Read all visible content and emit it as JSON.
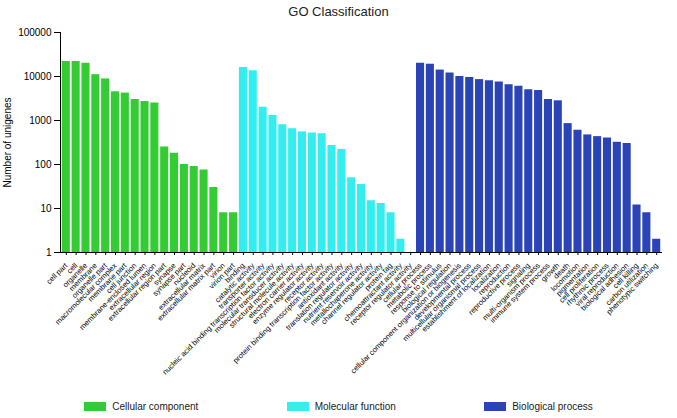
{
  "chart_data": {
    "type": "bar",
    "title": "GO Classification",
    "y_label": "Number of unigenes",
    "log": "y",
    "grid": false,
    "legend": "bottom",
    "ylim": [
      1,
      100000
    ],
    "yticks": [
      1,
      10,
      100,
      1000,
      10000,
      100000
    ],
    "categories": [
      "cell part",
      "cell",
      "organelle",
      "membrane",
      "organelle part",
      "macromolecular complex",
      "membrane part",
      "cell junction",
      "membrane-enclosed lumen",
      "extracellular region",
      "extracellular region part",
      "synapse",
      "synapse part",
      "nucleoid",
      "extracellular matrix",
      "extracellular matrix part",
      "virion",
      "virion part",
      "binding",
      "catalytic activity",
      "transporter activity",
      "nucleic acid binding transcription factor activity",
      "molecular transducer activity",
      "structural molecule activity",
      "electron carrier activity",
      "enzyme regulator activity",
      "receptor activity",
      "protein binding transcription factor activity",
      "antioxidant activity",
      "translation regulator activity",
      "nutrient reservoir activity",
      "metallochaperone activity",
      "channel regulator activity",
      "protein tag",
      "chemoattractant activity",
      "receptor regulator activity",
      "cellular process",
      "metabolic process",
      "response to stimulus",
      "biological regulation",
      "cellular component organization or biogenesis",
      "developmental process",
      "multicellular organismal process",
      "establishment of localization",
      "localization",
      "reproduction",
      "reproductive process",
      "signaling",
      "multi-organism process",
      "immune system process",
      "growth",
      "death",
      "locomotion",
      "pigmentation",
      "cell proliferation",
      "rhythmic process",
      "viral reproduction",
      "biological adhesion",
      "cell killing",
      "carbon utilization",
      "phenotypic switching"
    ],
    "series": [
      {
        "name": "Cellular component",
        "color": "#33cc33",
        "values": [
          22000,
          22000,
          20000,
          11000,
          8800,
          4500,
          4200,
          3000,
          2700,
          2500,
          250,
          180,
          100,
          90,
          75,
          30,
          8,
          8,
          null,
          null,
          null,
          null,
          null,
          null,
          null,
          null,
          null,
          null,
          null,
          null,
          null,
          null,
          null,
          null,
          null,
          null,
          null,
          null,
          null,
          null,
          null,
          null,
          null,
          null,
          null,
          null,
          null,
          null,
          null,
          null,
          null,
          null,
          null,
          null,
          null,
          null,
          null,
          null,
          null,
          null,
          null
        ]
      },
      {
        "name": "Molecular function",
        "color": "#33eeee",
        "values": [
          null,
          null,
          null,
          null,
          null,
          null,
          null,
          null,
          null,
          null,
          null,
          null,
          null,
          null,
          null,
          null,
          null,
          null,
          16000,
          13500,
          2000,
          1300,
          800,
          650,
          550,
          520,
          500,
          270,
          220,
          50,
          35,
          15,
          13,
          8,
          2,
          1,
          null,
          null,
          null,
          null,
          null,
          null,
          null,
          null,
          null,
          null,
          null,
          null,
          null,
          null,
          null,
          null,
          null,
          null,
          null,
          null,
          null,
          null,
          null,
          null,
          null
        ]
      },
      {
        "name": "Biological process",
        "color": "#2a44b8",
        "values": [
          null,
          null,
          null,
          null,
          null,
          null,
          null,
          null,
          null,
          null,
          null,
          null,
          null,
          null,
          null,
          null,
          null,
          null,
          null,
          null,
          null,
          null,
          null,
          null,
          null,
          null,
          null,
          null,
          null,
          null,
          null,
          null,
          null,
          null,
          null,
          null,
          20000,
          19000,
          14000,
          12000,
          10000,
          9500,
          8500,
          8000,
          7500,
          6500,
          6000,
          5000,
          4800,
          3000,
          2800,
          850,
          600,
          470,
          430,
          400,
          320,
          300,
          12,
          8,
          2
        ]
      }
    ]
  }
}
